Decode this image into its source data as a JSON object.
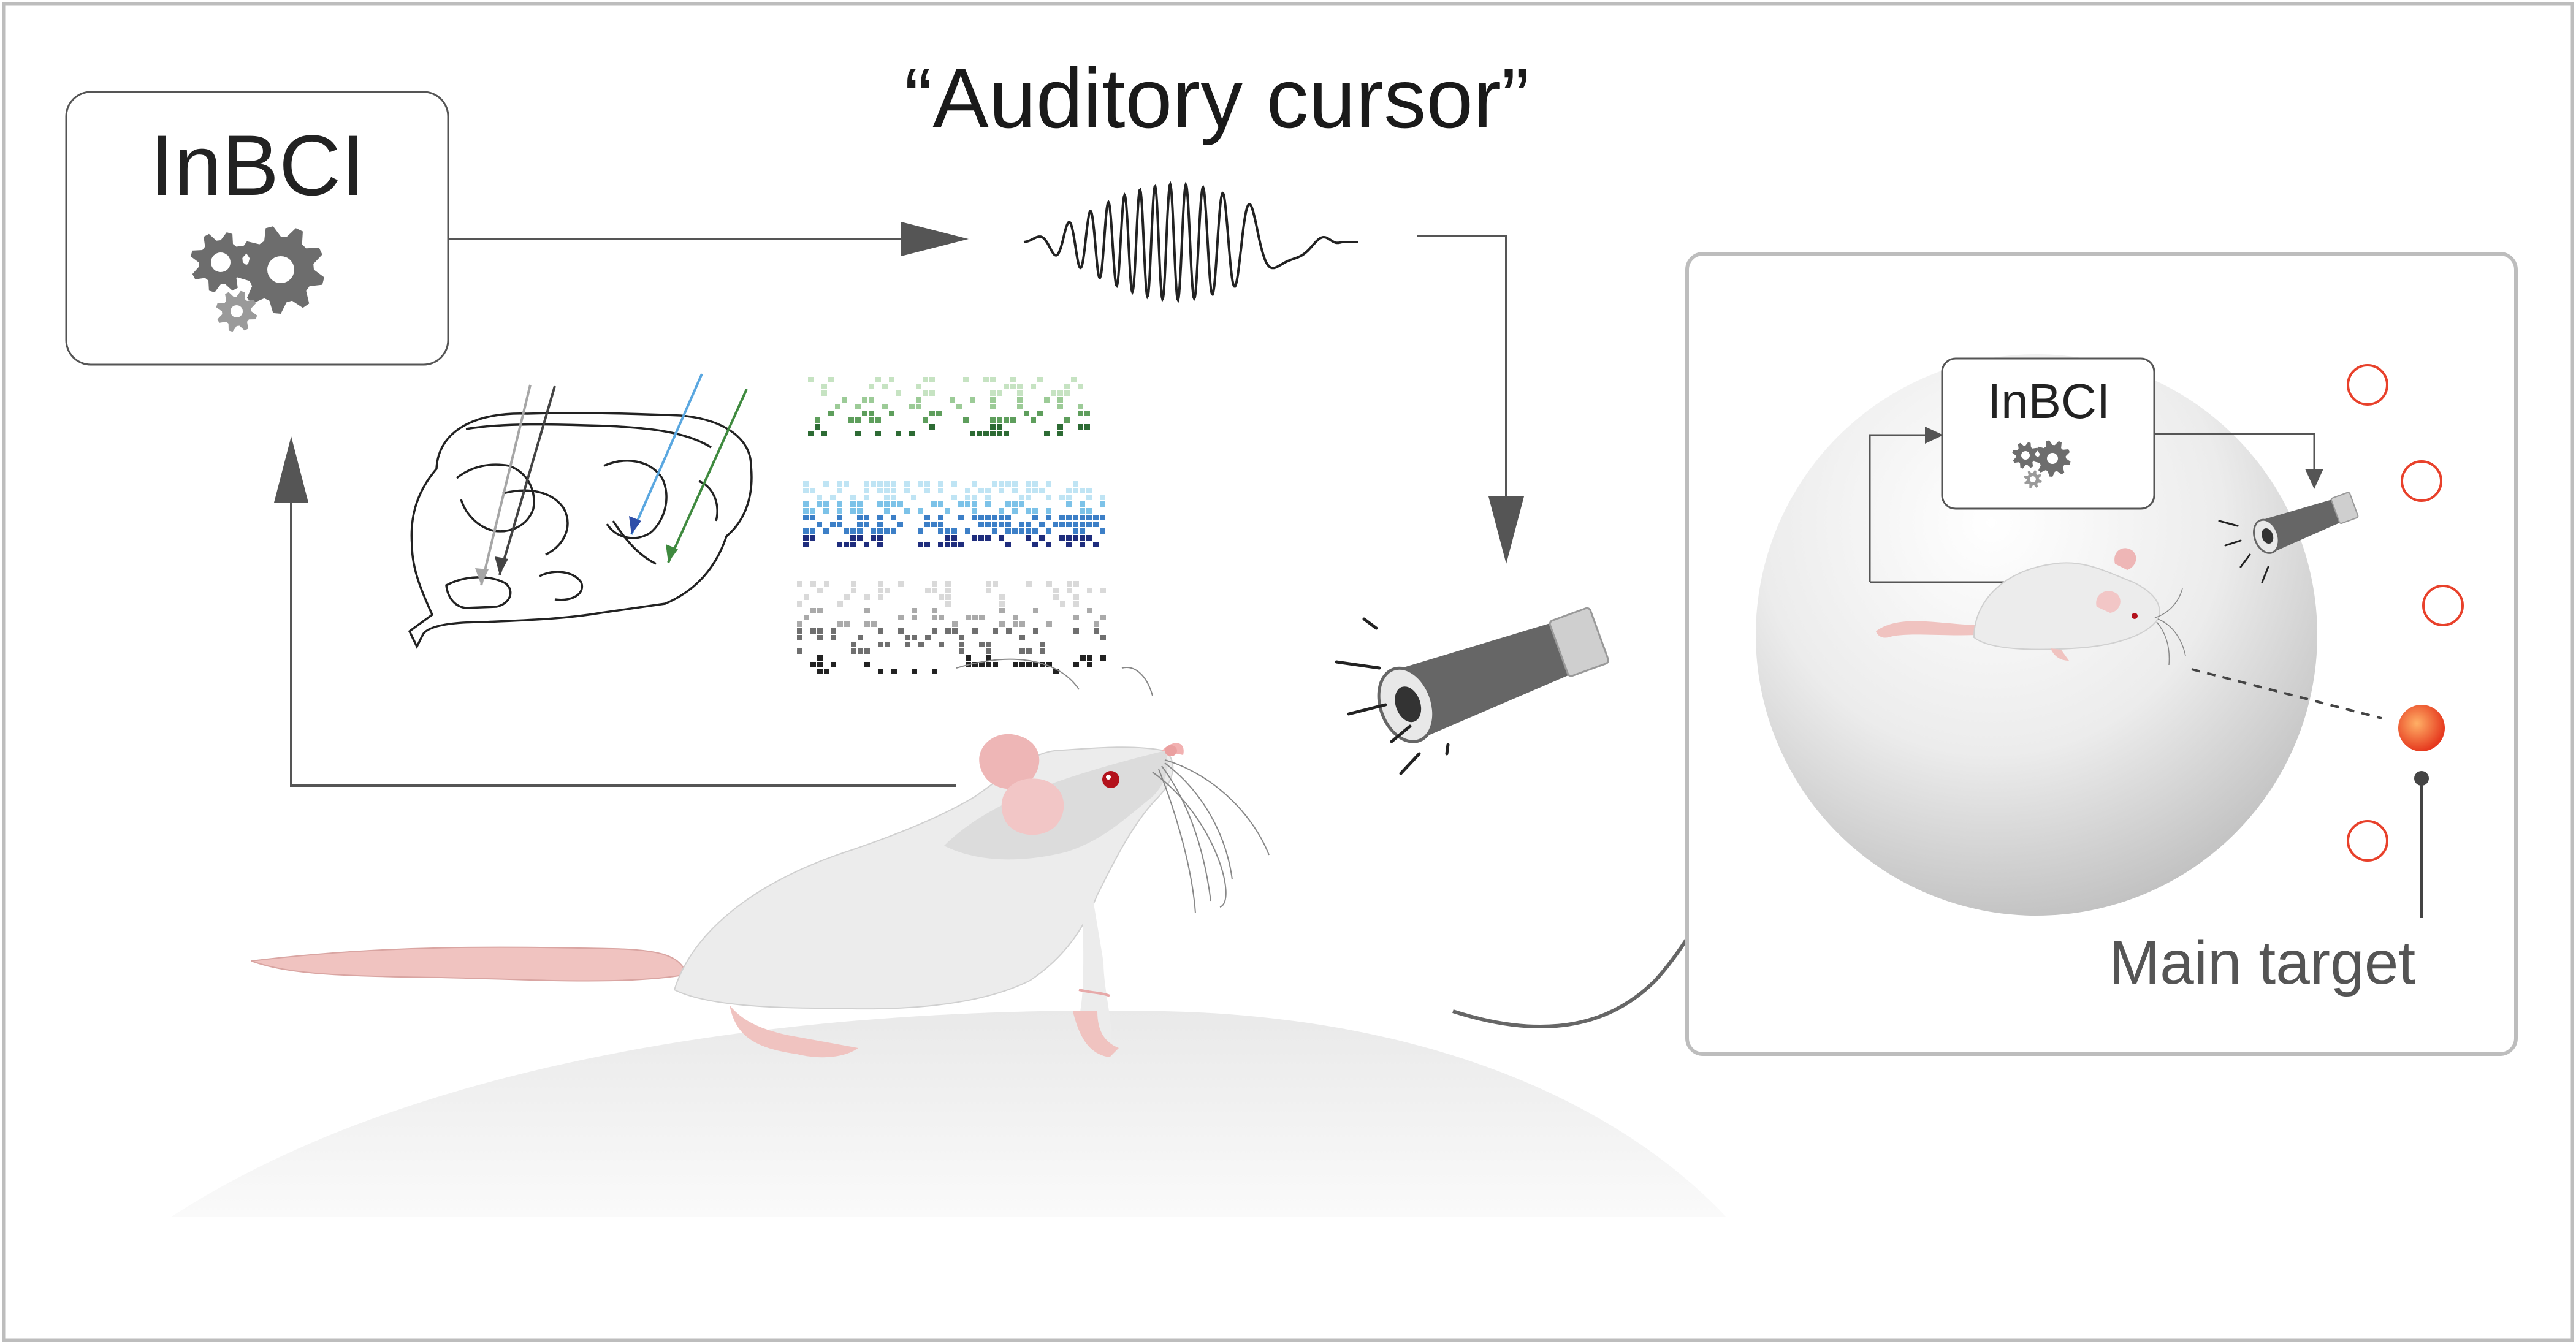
{
  "labels": {
    "inbci_main": "InBCI",
    "auditory_cursor": "“Auditory cursor”",
    "inbci_small": "InBCI",
    "main_target": "Main target"
  },
  "colors": {
    "frame": "#bdbdbd",
    "arrow": "#555555",
    "gear": "#6d6d6d",
    "gear_light": "#9a9a9a",
    "mouse_body": "#ececec",
    "mouse_ear": "#eeb6b6",
    "tail": "#f0c3c0",
    "eye": "#b3121c",
    "target_ring": "#e8412b",
    "target_fill": "#e94a24",
    "raster_green": [
      "#c6e3c2",
      "#9ccb97",
      "#5e9e5c",
      "#2d6b34"
    ],
    "raster_blue": [
      "#bfe4f4",
      "#7cc2e8",
      "#3c7fc7",
      "#1f2d7d"
    ],
    "raster_gray": [
      "#d9d9d9",
      "#aaaaaa",
      "#6f6f6f",
      "#222222"
    ],
    "probe_gray": [
      "#a6a6a6",
      "#444444"
    ],
    "probe_blue": [
      "#5aa7e0",
      "#2f4ea8"
    ],
    "probe_green": "#3f8a3f"
  }
}
